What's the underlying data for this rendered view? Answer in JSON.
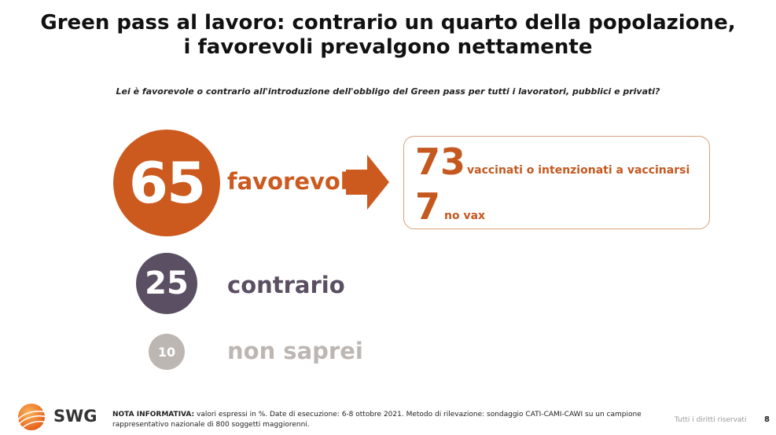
{
  "title": {
    "line1": "Green pass al lavoro: contrario un quarto della popolazione,",
    "line2": "i favorevoli prevalgono nettamente"
  },
  "subtitle": "Lei è favorevole o contrario all'introduzione dell'obbligo del Green pass per tutti i lavoratori, pubblici e privati?",
  "chart_data": {
    "type": "bubble",
    "unit": "%",
    "categories": [
      "favorevole",
      "contrario",
      "non saprei"
    ],
    "values": [
      65,
      25,
      10
    ],
    "colors": [
      "#cc5a1f",
      "#5b4f63",
      "#bdb7b3"
    ],
    "breakdown": {
      "of": "favorevole",
      "items": [
        {
          "value": 73,
          "label": "vaccinati o intenzionati a vaccinarsi"
        },
        {
          "value": 7,
          "label": "no vax"
        }
      ],
      "color": "#c4581f"
    }
  },
  "footer": {
    "brand": "SWG",
    "note_bold": "NOTA INFORMATIVA:",
    "note_text": " valori espressi in %. Date di esecuzione: 6-8 ottobre 2021. Metodo di rilevazione: sondaggio CATI-CAMI-CAWI su un campione rappresentativo nazionale di 800 soggetti maggiorenni.",
    "rights": "Tutti i diritti riservati",
    "page": "8"
  }
}
